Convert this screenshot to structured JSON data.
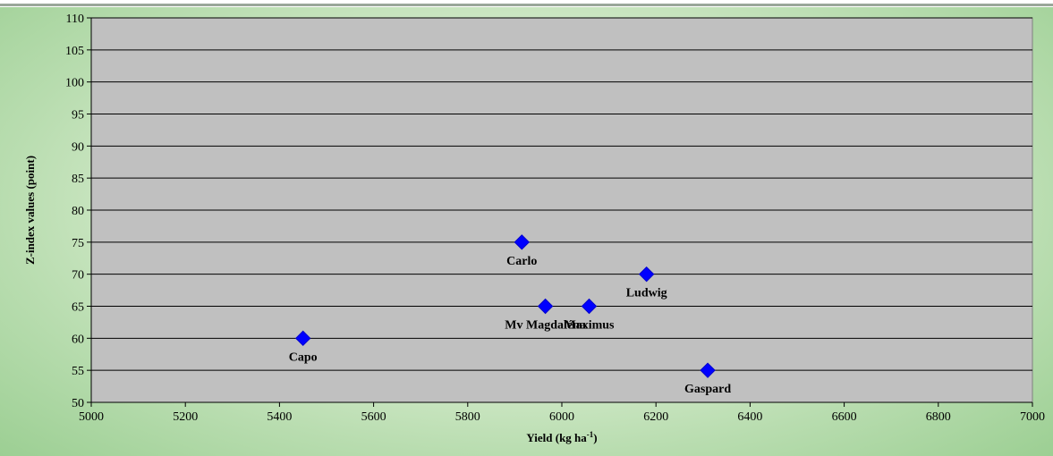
{
  "chart_data": {
    "type": "scatter",
    "title": "",
    "xlabel": "Yield (kg ha",
    "xlabel_sup": "-1",
    "xlabel_suffix": ")",
    "ylabel": "Z-index values (point)",
    "xlim": [
      5000,
      7000
    ],
    "ylim": [
      50,
      110
    ],
    "xticks": [
      5000,
      5200,
      5400,
      5600,
      5800,
      6000,
      6200,
      6400,
      6600,
      6800,
      7000
    ],
    "yticks": [
      50,
      55,
      60,
      65,
      70,
      75,
      80,
      85,
      90,
      95,
      100,
      105,
      110
    ],
    "grid": "horizontal",
    "legend": "none",
    "marker": "diamond",
    "marker_color": "#0000ff",
    "plot_background": "#c0c0c0",
    "points": [
      {
        "label": "Capo",
        "x": 5450,
        "y": 60
      },
      {
        "label": "Carlo",
        "x": 5915,
        "y": 75
      },
      {
        "label": "Mv Magdaléna",
        "x": 5965,
        "y": 65
      },
      {
        "label": "Maximus",
        "x": 6058,
        "y": 65
      },
      {
        "label": "Ludwig",
        "x": 6180,
        "y": 70
      },
      {
        "label": "Gaspard",
        "x": 6310,
        "y": 55
      }
    ]
  }
}
